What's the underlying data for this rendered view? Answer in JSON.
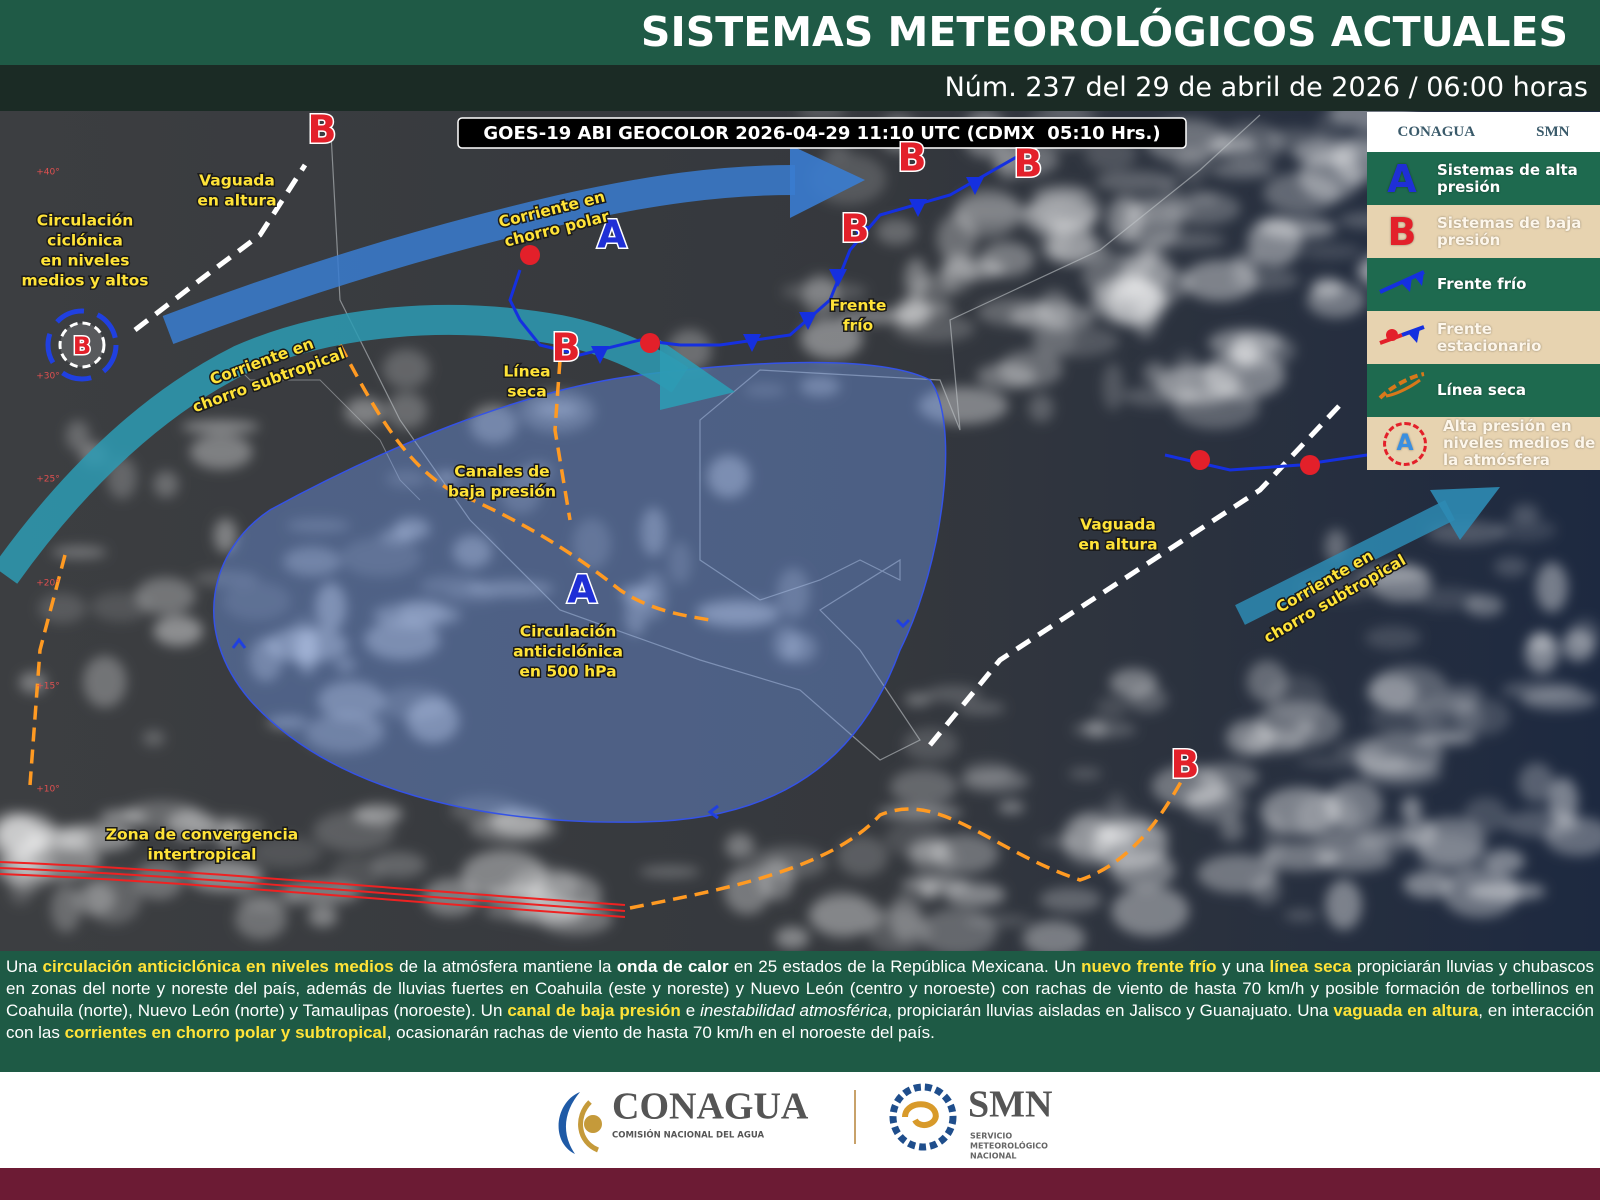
{
  "header": {
    "title": "SISTEMAS METEOROLÓGICOS ACTUALES",
    "subtitle": "Núm. 237 del 29 de abril de 2026 / 06:00 horas"
  },
  "map": {
    "satellite_label": "GOES-19 ABI GEOCOLOR 2026-04-29 11:10 UTC (CDMX  05:10 Hrs.)",
    "latitude_labels": [
      "+40°",
      "+30°",
      "+25°",
      "+20°",
      "+15°",
      "+10°"
    ],
    "pressure_systems": [
      {
        "letter": "B",
        "color": "#e3202a"
      },
      {
        "letter": "B",
        "color": "#e3202a"
      },
      {
        "letter": "B",
        "color": "#e3202a"
      },
      {
        "letter": "B",
        "color": "#e3202a"
      },
      {
        "letter": "B",
        "color": "#e3202a"
      },
      {
        "letter": "B",
        "color": "#e3202a"
      },
      {
        "letter": "B",
        "color": "#e3202a"
      },
      {
        "letter": "A",
        "color": "#1f2fd6"
      },
      {
        "letter": "A",
        "color": "#1f2fd6"
      }
    ],
    "labels": [
      {
        "lines": [
          "Vaguada",
          "en altura"
        ]
      },
      {
        "lines": [
          "Circulación",
          "ciclónica",
          "en niveles",
          "medios y altos"
        ]
      },
      {
        "lines": [
          "Corriente en",
          "chorro polar"
        ]
      },
      {
        "lines": [
          "Corriente en",
          "chorro subtropical"
        ]
      },
      {
        "lines": [
          "Línea",
          "seca"
        ]
      },
      {
        "lines": [
          "Frente",
          "frío"
        ]
      },
      {
        "lines": [
          "Canales de",
          "baja presión"
        ]
      },
      {
        "lines": [
          "Circulación",
          "anticiclónica",
          "en 500 hPa"
        ]
      },
      {
        "lines": [
          "Vaguada",
          "en altura"
        ]
      },
      {
        "lines": [
          "Corriente en",
          "chorro subtropical"
        ]
      },
      {
        "lines": [
          "Zona de convergencia",
          "intertropical"
        ]
      }
    ]
  },
  "legend": {
    "logos": [
      "CONAGUA",
      "SMN"
    ],
    "items": [
      {
        "symbol": "A",
        "label": "Sistemas de alta presión"
      },
      {
        "symbol": "B",
        "label": "Sistemas de baja presión"
      },
      {
        "label": "Frente frío"
      },
      {
        "label": "Frente estacionario"
      },
      {
        "label": "Línea seca"
      },
      {
        "symbol": "A",
        "label": "Alta presión en niveles medios de la atmósfera"
      }
    ]
  },
  "description": [
    {
      "text": "Una ",
      "style": "normal"
    },
    {
      "text": "circulación anticiclónica en niveles medios",
      "style": "highlight"
    },
    {
      "text": " de la atmósfera mantiene la ",
      "style": "normal"
    },
    {
      "text": "onda de calor",
      "style": "bold"
    },
    {
      "text": " en 25 estados de la República Mexicana. Un ",
      "style": "normal"
    },
    {
      "text": "nuevo frente frío",
      "style": "highlight"
    },
    {
      "text": " y una ",
      "style": "normal"
    },
    {
      "text": "línea seca",
      "style": "highlight"
    },
    {
      "text": " propiciarán lluvias y chubascos en zonas del norte y noreste del país, además de lluvias fuertes en Coahuila (este y noreste) y Nuevo León (centro y noroeste) con rachas de viento de hasta 70 km/h y posible formación de torbellinos en Coahuila (norte), Nuevo León (norte) y Tamaulipas (noroeste). Un ",
      "style": "normal"
    },
    {
      "text": "canal de baja presión",
      "style": "highlight"
    },
    {
      "text": " e ",
      "style": "normal"
    },
    {
      "text": "inestabilidad atmosférica",
      "style": "italic"
    },
    {
      "text": ", propiciarán lluvias aisladas en Jalisco y Guanajuato. Una ",
      "style": "normal"
    },
    {
      "text": "vaguada en altura",
      "style": "highlight"
    },
    {
      "text": ", en interacción con las ",
      "style": "normal"
    },
    {
      "text": "corrientes en chorro polar y subtropical",
      "style": "highlight"
    },
    {
      "text": ", ocasionarán rachas de viento de hasta 70 km/h en el noroeste del país.",
      "style": "normal"
    }
  ],
  "footer": {
    "conagua": "CONAGUA",
    "conagua_sub": "COMISIÓN NACIONAL DEL AGUA",
    "smn": "SMN",
    "smn_sub": [
      "SERVICIO",
      "METEOROLÓGICO",
      "NACIONAL"
    ]
  }
}
